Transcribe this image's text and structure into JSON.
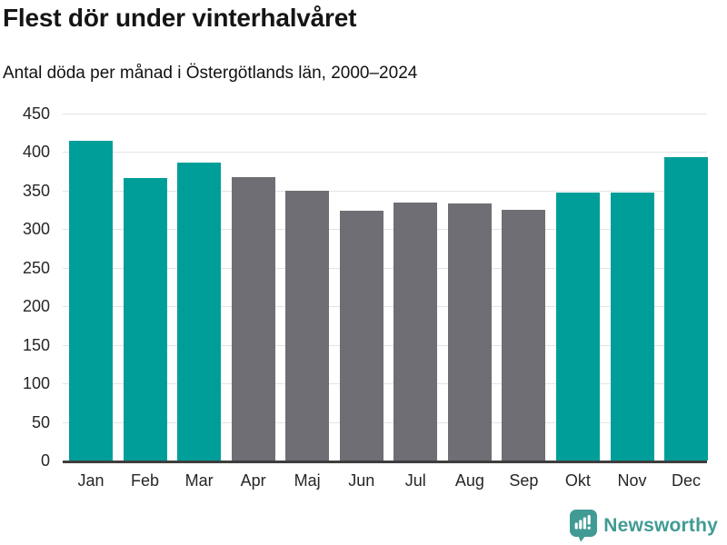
{
  "header": {
    "title": "Flest dör under vinterhalvåret",
    "subtitle": "Antal döda per månad i Östergötlands län, 2000–2024"
  },
  "chart_data": {
    "type": "bar",
    "title": "Flest dör under vinterhalvåret",
    "subtitle": "Antal döda per månad i Östergötlands län, 2000–2024",
    "categories": [
      "Jan",
      "Feb",
      "Mar",
      "Apr",
      "Maj",
      "Jun",
      "Jul",
      "Aug",
      "Sep",
      "Okt",
      "Nov",
      "Dec"
    ],
    "values": [
      415,
      366,
      386,
      367,
      350,
      324,
      335,
      333,
      325,
      347,
      348,
      394
    ],
    "bar_colors": [
      "#009E98",
      "#009E98",
      "#009E98",
      "#6E6E74",
      "#6E6E74",
      "#6E6E74",
      "#6E6E74",
      "#6E6E74",
      "#6E6E74",
      "#009E98",
      "#009E98",
      "#009E98"
    ],
    "palette": {
      "winter_highlight": "#009E98",
      "other_months": "#6E6E74"
    },
    "xlabel": "",
    "ylabel": "",
    "ylim": [
      0,
      450
    ],
    "yticks": [
      0,
      50,
      100,
      150,
      200,
      250,
      300,
      350,
      400,
      450
    ],
    "grid": true,
    "legend": false,
    "axis_line_color": "#3E3E3E",
    "gridline_color": "#E3E3E3"
  },
  "footer": {
    "brand": "Newsworthy",
    "brand_color": "#419B94",
    "logo_icon": "bar-chart-speech-bubble"
  }
}
